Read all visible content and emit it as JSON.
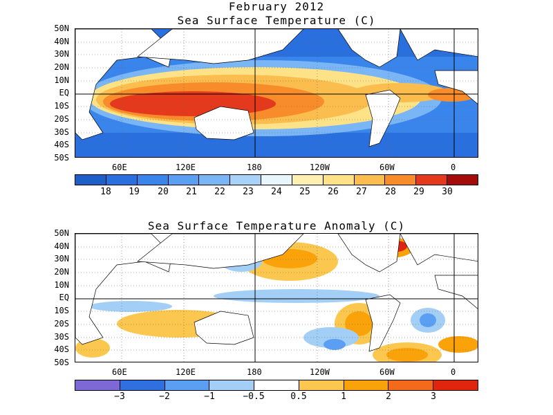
{
  "header": {
    "date": "February 2012"
  },
  "panels": [
    {
      "title": "Sea Surface Temperature (C)",
      "lat_labels": [
        "50N",
        "40N",
        "30N",
        "20N",
        "10N",
        "EQ",
        "10S",
        "20S",
        "30S",
        "40S",
        "50S"
      ],
      "lon_labels": [
        "60E",
        "120E",
        "180",
        "120W",
        "60W",
        "0"
      ],
      "colorbar": {
        "colors": [
          "#1d5fc8",
          "#2a6fde",
          "#3a85ec",
          "#5a9ff2",
          "#7ab5f5",
          "#a9d2f8",
          "#e6f6fb",
          "#fdf0b0",
          "#fde287",
          "#fbbe4e",
          "#f88b2a",
          "#e4391c",
          "#a50b0b"
        ],
        "labels": [
          "18",
          "19",
          "20",
          "21",
          "22",
          "23",
          "24",
          "25",
          "26",
          "27",
          "28",
          "29",
          "30"
        ]
      }
    },
    {
      "title": "Sea Surface Temperature Anomaly (C)",
      "lat_labels": [
        "50N",
        "40N",
        "30N",
        "20N",
        "10N",
        "EQ",
        "10S",
        "20S",
        "30S",
        "40S",
        "50S"
      ],
      "lon_labels": [
        "60E",
        "120E",
        "180",
        "120W",
        "60W",
        "0"
      ],
      "colorbar": {
        "colors": [
          "#7d68d6",
          "#2f6fe0",
          "#5a9ff2",
          "#a3cff7",
          "#ffffff",
          "#fcc74e",
          "#f9a20a",
          "#f26a1a",
          "#e0240e"
        ],
        "labels": [
          "−3",
          "−2",
          "−1",
          "−0.5",
          "0.5",
          "1",
          "2",
          "3"
        ]
      }
    }
  ]
}
